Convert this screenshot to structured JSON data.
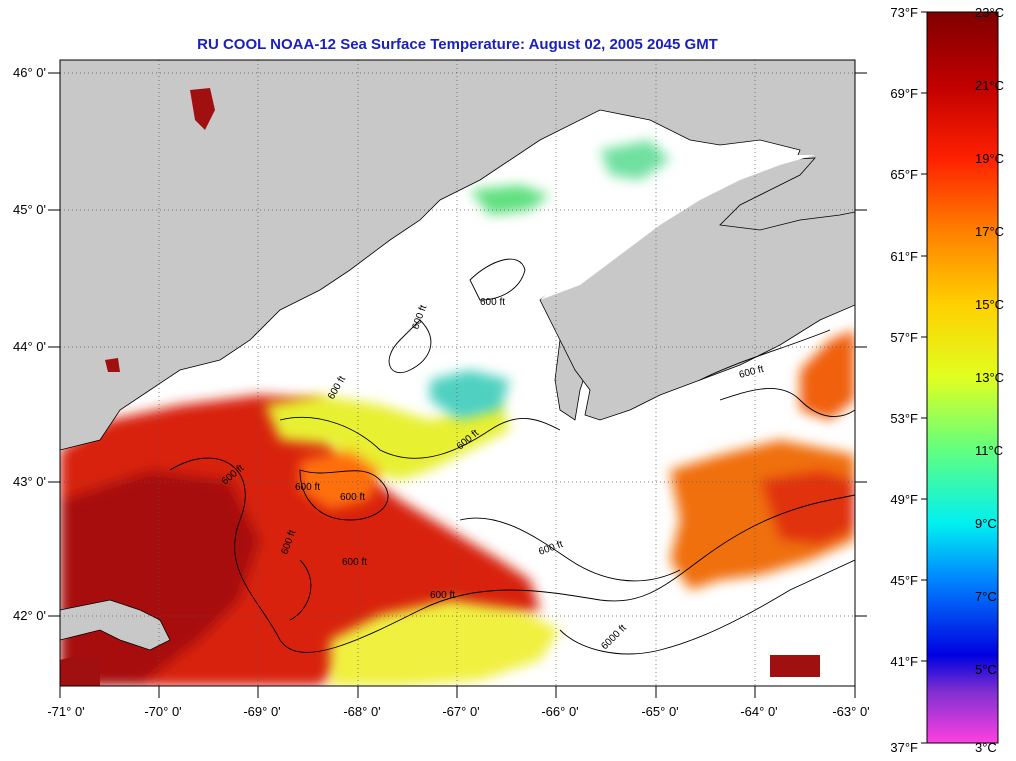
{
  "title": "RU COOL  NOAA-12  Sea Surface Temperature:  August 02, 2005 2045 GMT",
  "lat_labels": [
    "46° 0'",
    "45° 0'",
    "44° 0'",
    "43° 0'",
    "42° 0'"
  ],
  "lon_labels": [
    "-71° 0'",
    "-70° 0'",
    "-69° 0'",
    "-68° 0'",
    "-67° 0'",
    "-66° 0'",
    "-65° 0'",
    "-64° 0'",
    "-63° 0'"
  ],
  "contour_labels": [
    "600 ft",
    "600 ft",
    "600 ft",
    "600 ft",
    "600 ft",
    "600 ft",
    "600 ft",
    "600 ft",
    "600 ft",
    "600 ft",
    "600 ft",
    "600 ft",
    "6000 ft"
  ],
  "colorbar": {
    "fahrenheit": [
      "73°F",
      "69°F",
      "65°F",
      "61°F",
      "57°F",
      "53°F",
      "49°F",
      "45°F",
      "41°F",
      "37°F"
    ],
    "celsius": [
      "23°C",
      "21°C",
      "19°C",
      "17°C",
      "15°C",
      "13°C",
      "11°C",
      "9°C",
      "7°C",
      "5°C",
      "3°C"
    ],
    "range_f": [
      37,
      73
    ],
    "range_c": [
      3,
      23
    ]
  },
  "colors": {
    "land": "#c8c8c8",
    "title": "#1a1fc0",
    "warm": "#b81010",
    "mid": "#f0ff30",
    "cool": "#40c8c8"
  }
}
